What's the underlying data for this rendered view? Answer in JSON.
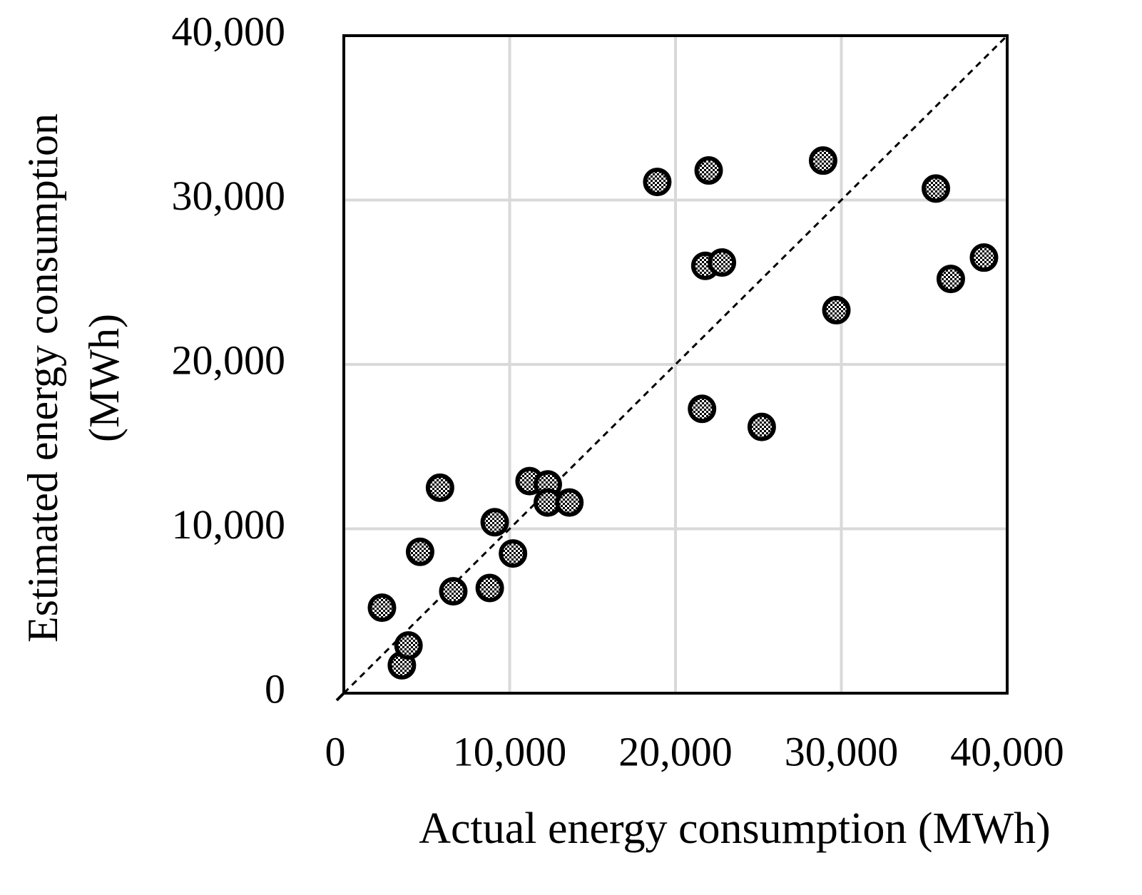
{
  "chart_data": {
    "type": "scatter",
    "xlabel": "Actual energy consumption (MWh)",
    "ylabel": "Estimated energy consumption (MWh)",
    "xlim": [
      0,
      40000
    ],
    "ylim": [
      0,
      40000
    ],
    "xticks": [
      0,
      {
        "value": 10000,
        "label": "10,000"
      },
      {
        "value": 20000,
        "label": "20,000"
      },
      {
        "value": 30000,
        "label": "30,000"
      },
      {
        "value": 40000,
        "label": "40,000"
      }
    ],
    "yticks": [
      0,
      {
        "value": 10000,
        "label": "10,000"
      },
      {
        "value": 20000,
        "label": "20,000"
      },
      {
        "value": 30000,
        "label": "30,000"
      },
      {
        "value": 40000,
        "label": "40,000"
      }
    ],
    "grid": true,
    "color": "#000000",
    "x": [
      2300,
      3500,
      3900,
      4600,
      5800,
      6600,
      8800,
      9100,
      10200,
      11200,
      12300,
      12300,
      13600,
      18900,
      21600,
      21800,
      22000,
      22800,
      25200,
      28900,
      29700,
      35700,
      36600,
      38600
    ],
    "values": [
      5200,
      1700,
      2900,
      8600,
      12500,
      6200,
      6400,
      10400,
      8500,
      12900,
      12700,
      11600,
      11600,
      31100,
      17300,
      26000,
      31800,
      26200,
      16200,
      32400,
      23300,
      30700,
      25200,
      26500
    ]
  }
}
